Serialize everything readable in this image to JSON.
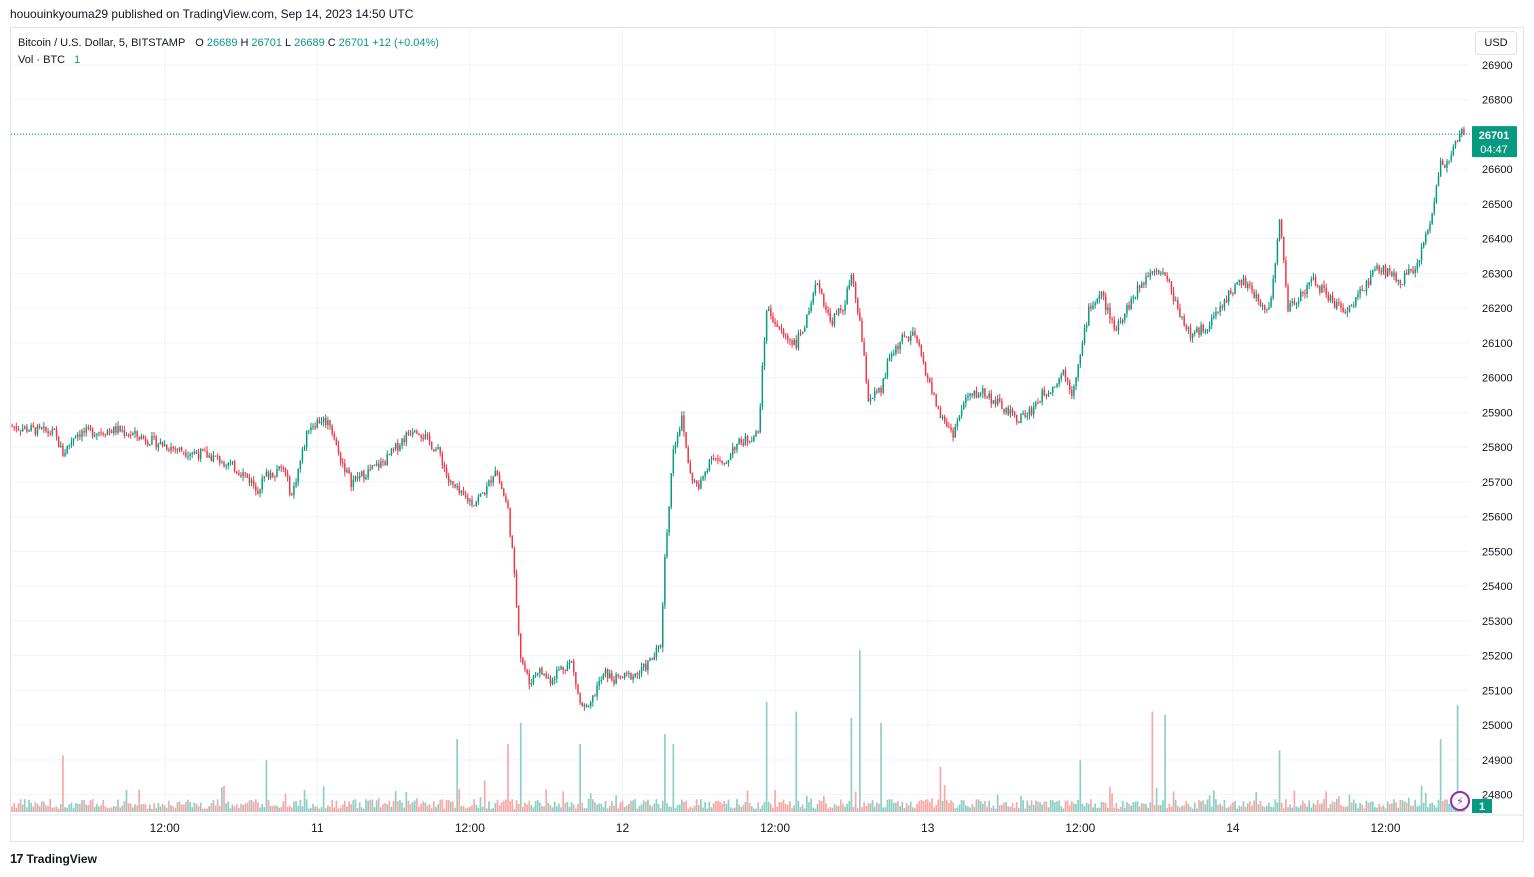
{
  "header": {
    "publish_line": "hououinkyouma29 published on TradingView.com, Sep 14, 2023 14:50 UTC"
  },
  "legend": {
    "symbol": "Bitcoin / U.S. Dollar, 5, BITSTAMP",
    "o_label": "O",
    "o_value": "26689",
    "h_label": "H",
    "h_value": "26701",
    "l_label": "L",
    "l_value": "26689",
    "c_label": "C",
    "c_value": "26701",
    "change": "+12 (+0.04%)",
    "vol_label": "Vol · BTC",
    "vol_value": "1"
  },
  "currency_button": "USD",
  "price_badge": {
    "price": "26701",
    "countdown": "04:47"
  },
  "volume_badge": "1",
  "footer": {
    "brand": "TradingView",
    "mark": "17"
  },
  "colors": {
    "up": "#089981",
    "down": "#f23645",
    "vol_up": "#8fcfc3",
    "vol_down": "#f7a9a7",
    "grid": "#f0f3fa"
  },
  "chart_data": {
    "type": "line",
    "series": [
      {
        "values": [
          [
            0,
            25860
          ],
          [
            10,
            25850
          ],
          [
            20,
            25840
          ],
          [
            24,
            25780
          ],
          [
            30,
            25840
          ],
          [
            50,
            25850
          ],
          [
            60,
            25830
          ],
          [
            70,
            25810
          ],
          [
            80,
            25790
          ],
          [
            90,
            25780
          ],
          [
            100,
            25760
          ],
          [
            110,
            25720
          ],
          [
            116,
            25680
          ],
          [
            120,
            25720
          ],
          [
            128,
            25740
          ],
          [
            132,
            25660
          ],
          [
            136,
            25760
          ],
          [
            140,
            25860
          ],
          [
            146,
            25880
          ],
          [
            150,
            25870
          ],
          [
            154,
            25780
          ],
          [
            160,
            25700
          ],
          [
            168,
            25730
          ],
          [
            176,
            25760
          ],
          [
            184,
            25820
          ],
          [
            190,
            25860
          ],
          [
            196,
            25820
          ],
          [
            202,
            25780
          ],
          [
            206,
            25700
          ],
          [
            212,
            25660
          ],
          [
            218,
            25640
          ],
          [
            224,
            25680
          ],
          [
            228,
            25740
          ],
          [
            234,
            25620
          ],
          [
            236,
            25500
          ],
          [
            238,
            25350
          ],
          [
            240,
            25200
          ],
          [
            244,
            25120
          ],
          [
            248,
            25160
          ],
          [
            254,
            25130
          ],
          [
            258,
            25160
          ],
          [
            264,
            25180
          ],
          [
            268,
            25060
          ],
          [
            272,
            25040
          ],
          [
            276,
            25110
          ],
          [
            280,
            25150
          ],
          [
            284,
            25130
          ],
          [
            290,
            25140
          ],
          [
            296,
            25150
          ],
          [
            302,
            25190
          ],
          [
            306,
            25230
          ],
          [
            308,
            25480
          ],
          [
            312,
            25800
          ],
          [
            316,
            25880
          ],
          [
            320,
            25720
          ],
          [
            324,
            25680
          ],
          [
            330,
            25780
          ],
          [
            336,
            25740
          ],
          [
            340,
            25800
          ],
          [
            346,
            25820
          ],
          [
            352,
            25840
          ],
          [
            356,
            26200
          ],
          [
            360,
            26160
          ],
          [
            364,
            26120
          ],
          [
            370,
            26100
          ],
          [
            376,
            26180
          ],
          [
            380,
            26280
          ],
          [
            386,
            26160
          ],
          [
            392,
            26200
          ],
          [
            396,
            26290
          ],
          [
            400,
            26160
          ],
          [
            404,
            25940
          ],
          [
            410,
            25960
          ],
          [
            414,
            26060
          ],
          [
            420,
            26110
          ],
          [
            426,
            26120
          ],
          [
            430,
            26040
          ],
          [
            434,
            25960
          ],
          [
            438,
            25890
          ],
          [
            444,
            25840
          ],
          [
            450,
            25940
          ],
          [
            458,
            25960
          ],
          [
            466,
            25920
          ],
          [
            474,
            25880
          ],
          [
            480,
            25900
          ],
          [
            486,
            25950
          ],
          [
            492,
            25980
          ],
          [
            496,
            26020
          ],
          [
            500,
            25960
          ],
          [
            504,
            26060
          ],
          [
            508,
            26200
          ],
          [
            514,
            26240
          ],
          [
            520,
            26140
          ],
          [
            526,
            26200
          ],
          [
            532,
            26260
          ],
          [
            538,
            26320
          ],
          [
            544,
            26300
          ],
          [
            550,
            26200
          ],
          [
            556,
            26120
          ],
          [
            562,
            26140
          ],
          [
            568,
            26180
          ],
          [
            574,
            26240
          ],
          [
            580,
            26280
          ],
          [
            586,
            26240
          ],
          [
            590,
            26200
          ],
          [
            594,
            26220
          ],
          [
            598,
            26460
          ],
          [
            602,
            26200
          ],
          [
            608,
            26240
          ],
          [
            614,
            26280
          ],
          [
            620,
            26240
          ],
          [
            626,
            26200
          ],
          [
            632,
            26200
          ],
          [
            638,
            26260
          ],
          [
            644,
            26320
          ],
          [
            650,
            26300
          ],
          [
            656,
            26280
          ],
          [
            662,
            26320
          ],
          [
            666,
            26380
          ],
          [
            670,
            26480
          ],
          [
            674,
            26620
          ],
          [
            676,
            26600
          ],
          [
            680,
            26660
          ],
          [
            684,
            26701
          ]
        ]
      }
    ],
    "x_tick_labels": [
      "12:00",
      "11",
      "12:00",
      "12",
      "12:00",
      "13",
      "12:00",
      "14",
      "12:00"
    ],
    "x_tick_positions": [
      36,
      72,
      108,
      144,
      180,
      216,
      252,
      288,
      324
    ],
    "x_tick_index_scale": 2,
    "y_tick_labels": [
      "26900",
      "26800",
      "26700",
      "26600",
      "26500",
      "26400",
      "26300",
      "26200",
      "26100",
      "26000",
      "25900",
      "25800",
      "25700",
      "25600",
      "25500",
      "25400",
      "25300",
      "25200",
      "25100",
      "25000",
      "24900",
      "24800"
    ],
    "ylim": [
      24750,
      26920
    ],
    "last_price": 26701,
    "volume_spikes": [
      {
        "bar": 24,
        "v": 0.35,
        "up": false
      },
      {
        "bar": 120,
        "v": 0.32,
        "up": true
      },
      {
        "bar": 210,
        "v": 0.45,
        "up": true
      },
      {
        "bar": 234,
        "v": 0.42,
        "up": false
      },
      {
        "bar": 240,
        "v": 0.55,
        "up": true
      },
      {
        "bar": 268,
        "v": 0.42,
        "up": true
      },
      {
        "bar": 308,
        "v": 0.48,
        "up": true
      },
      {
        "bar": 312,
        "v": 0.42,
        "up": true
      },
      {
        "bar": 356,
        "v": 0.68,
        "up": true
      },
      {
        "bar": 370,
        "v": 0.62,
        "up": true
      },
      {
        "bar": 396,
        "v": 0.58,
        "up": true
      },
      {
        "bar": 400,
        "v": 1.0,
        "up": true
      },
      {
        "bar": 410,
        "v": 0.55,
        "up": true
      },
      {
        "bar": 438,
        "v": 0.28,
        "up": false
      },
      {
        "bar": 504,
        "v": 0.32,
        "up": true
      },
      {
        "bar": 538,
        "v": 0.62,
        "up": false
      },
      {
        "bar": 544,
        "v": 0.6,
        "up": true
      },
      {
        "bar": 598,
        "v": 0.38,
        "up": true
      },
      {
        "bar": 674,
        "v": 0.45,
        "up": true
      },
      {
        "bar": 682,
        "v": 0.66,
        "up": true
      }
    ]
  }
}
